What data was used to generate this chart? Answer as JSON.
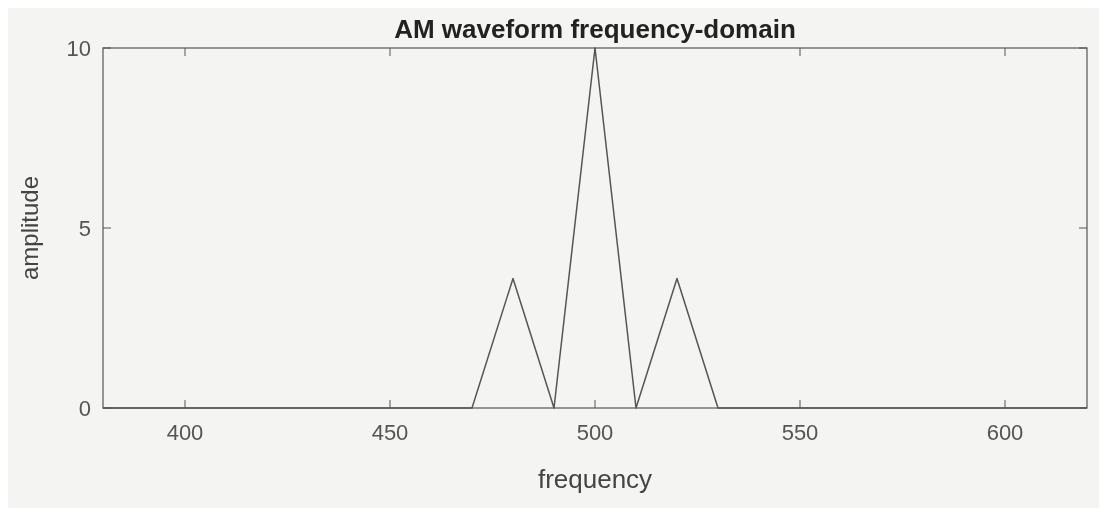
{
  "chart_data": {
    "type": "line",
    "title": "AM waveform frequency-domain",
    "xlabel": "frequency",
    "ylabel": "amplitude",
    "x": [
      380,
      470,
      480,
      490,
      500,
      510,
      520,
      530,
      620
    ],
    "series": [
      {
        "color": "#555555",
        "values": [
          0,
          0,
          3.6,
          0,
          10,
          0,
          3.6,
          0,
          0
        ]
      }
    ],
    "xlim": [
      380,
      620
    ],
    "xticks": [
      400,
      450,
      500,
      550,
      600
    ],
    "ylim": [
      0,
      10
    ],
    "yticks": [
      0,
      5,
      10
    ],
    "grid": false,
    "marker": "none",
    "line_style": "solid"
  }
}
